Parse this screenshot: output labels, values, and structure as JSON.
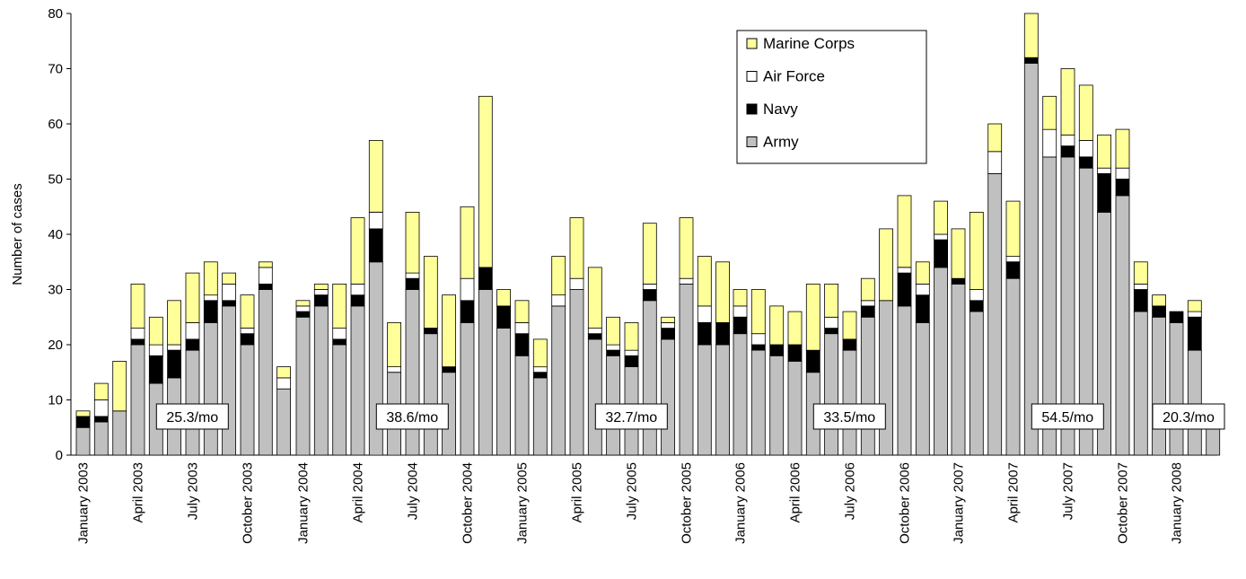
{
  "chart_data": {
    "type": "bar",
    "stacked": true,
    "ylabel": "Number of cases",
    "ylim": [
      0,
      80
    ],
    "yticks": [
      0,
      10,
      20,
      30,
      40,
      50,
      60,
      70,
      80
    ],
    "grid": false,
    "legend_position": "top-right",
    "series_order": [
      "Army",
      "Navy",
      "Air Force",
      "Marine Corps"
    ],
    "legend_order": [
      "Marine Corps",
      "Air Force",
      "Navy",
      "Army"
    ],
    "colors": {
      "Army": "#c0c0c0",
      "Navy": "#000000",
      "Air Force": "#ffffff",
      "Marine Corps": "#ffff99"
    },
    "years": [
      {
        "year": "2003",
        "rate_label": "25.3/mo",
        "tick_labels": [
          "January 2003",
          "April 2003",
          "July 2003",
          "October 2003"
        ],
        "months": [
          {
            "Army": 5,
            "Navy": 2,
            "Air Force": 0,
            "Marine Corps": 1
          },
          {
            "Army": 6,
            "Navy": 1,
            "Air Force": 3,
            "Marine Corps": 3
          },
          {
            "Army": 8,
            "Navy": 0,
            "Air Force": 0,
            "Marine Corps": 9
          },
          {
            "Army": 20,
            "Navy": 1,
            "Air Force": 2,
            "Marine Corps": 8
          },
          {
            "Army": 13,
            "Navy": 5,
            "Air Force": 2,
            "Marine Corps": 5
          },
          {
            "Army": 14,
            "Navy": 5,
            "Air Force": 1,
            "Marine Corps": 8
          },
          {
            "Army": 19,
            "Navy": 2,
            "Air Force": 3,
            "Marine Corps": 9
          },
          {
            "Army": 24,
            "Navy": 4,
            "Air Force": 1,
            "Marine Corps": 6
          },
          {
            "Army": 27,
            "Navy": 1,
            "Air Force": 3,
            "Marine Corps": 2
          },
          {
            "Army": 20,
            "Navy": 2,
            "Air Force": 1,
            "Marine Corps": 6
          },
          {
            "Army": 30,
            "Navy": 1,
            "Air Force": 3,
            "Marine Corps": 1
          },
          {
            "Army": 12,
            "Navy": 0,
            "Air Force": 2,
            "Marine Corps": 2
          }
        ]
      },
      {
        "year": "2004",
        "rate_label": "38.6/mo",
        "tick_labels": [
          "January 2004",
          "April 2004",
          "July 2004",
          "October 2004"
        ],
        "months": [
          {
            "Army": 25,
            "Navy": 1,
            "Air Force": 1,
            "Marine Corps": 1
          },
          {
            "Army": 27,
            "Navy": 2,
            "Air Force": 1,
            "Marine Corps": 1
          },
          {
            "Army": 20,
            "Navy": 1,
            "Air Force": 2,
            "Marine Corps": 8
          },
          {
            "Army": 27,
            "Navy": 2,
            "Air Force": 2,
            "Marine Corps": 12
          },
          {
            "Army": 35,
            "Navy": 6,
            "Air Force": 3,
            "Marine Corps": 13
          },
          {
            "Army": 15,
            "Navy": 0,
            "Air Force": 1,
            "Marine Corps": 8
          },
          {
            "Army": 30,
            "Navy": 2,
            "Air Force": 1,
            "Marine Corps": 11
          },
          {
            "Army": 22,
            "Navy": 1,
            "Air Force": 0,
            "Marine Corps": 13
          },
          {
            "Army": 15,
            "Navy": 1,
            "Air Force": 0,
            "Marine Corps": 13
          },
          {
            "Army": 24,
            "Navy": 4,
            "Air Force": 4,
            "Marine Corps": 13
          },
          {
            "Army": 30,
            "Navy": 4,
            "Air Force": 0,
            "Marine Corps": 31
          },
          {
            "Army": 23,
            "Navy": 4,
            "Air Force": 0,
            "Marine Corps": 3
          }
        ]
      },
      {
        "year": "2005",
        "rate_label": "32.7/mo",
        "tick_labels": [
          "January 2005",
          "April 2005",
          "July 2005",
          "October 2005"
        ],
        "months": [
          {
            "Army": 18,
            "Navy": 4,
            "Air Force": 2,
            "Marine Corps": 4
          },
          {
            "Army": 14,
            "Navy": 1,
            "Air Force": 1,
            "Marine Corps": 5
          },
          {
            "Army": 27,
            "Navy": 0,
            "Air Force": 2,
            "Marine Corps": 7
          },
          {
            "Army": 30,
            "Navy": 0,
            "Air Force": 2,
            "Marine Corps": 11
          },
          {
            "Army": 21,
            "Navy": 1,
            "Air Force": 1,
            "Marine Corps": 11
          },
          {
            "Army": 18,
            "Navy": 1,
            "Air Force": 1,
            "Marine Corps": 5
          },
          {
            "Army": 16,
            "Navy": 2,
            "Air Force": 1,
            "Marine Corps": 5
          },
          {
            "Army": 28,
            "Navy": 2,
            "Air Force": 1,
            "Marine Corps": 11
          },
          {
            "Army": 21,
            "Navy": 2,
            "Air Force": 1,
            "Marine Corps": 1
          },
          {
            "Army": 31,
            "Navy": 0,
            "Air Force": 1,
            "Marine Corps": 11
          },
          {
            "Army": 20,
            "Navy": 4,
            "Air Force": 3,
            "Marine Corps": 9
          },
          {
            "Army": 20,
            "Navy": 4,
            "Air Force": 0,
            "Marine Corps": 11
          }
        ]
      },
      {
        "year": "2006",
        "rate_label": "33.5/mo",
        "tick_labels": [
          "January 2006",
          "April 2006",
          "July 2006",
          "October 2006"
        ],
        "months": [
          {
            "Army": 22,
            "Navy": 3,
            "Air Force": 2,
            "Marine Corps": 3
          },
          {
            "Army": 19,
            "Navy": 1,
            "Air Force": 2,
            "Marine Corps": 8
          },
          {
            "Army": 18,
            "Navy": 2,
            "Air Force": 0,
            "Marine Corps": 7
          },
          {
            "Army": 17,
            "Navy": 3,
            "Air Force": 0,
            "Marine Corps": 6
          },
          {
            "Army": 15,
            "Navy": 4,
            "Air Force": 0,
            "Marine Corps": 12
          },
          {
            "Army": 22,
            "Navy": 1,
            "Air Force": 2,
            "Marine Corps": 6
          },
          {
            "Army": 19,
            "Navy": 2,
            "Air Force": 0,
            "Marine Corps": 5
          },
          {
            "Army": 25,
            "Navy": 2,
            "Air Force": 1,
            "Marine Corps": 4
          },
          {
            "Army": 28,
            "Navy": 0,
            "Air Force": 0,
            "Marine Corps": 13
          },
          {
            "Army": 27,
            "Navy": 6,
            "Air Force": 1,
            "Marine Corps": 13
          },
          {
            "Army": 24,
            "Navy": 5,
            "Air Force": 2,
            "Marine Corps": 4
          },
          {
            "Army": 34,
            "Navy": 5,
            "Air Force": 1,
            "Marine Corps": 6
          }
        ]
      },
      {
        "year": "2007",
        "rate_label": "54.5/mo",
        "tick_labels": [
          "January 2007",
          "April 2007",
          "July 2007",
          "October 2007"
        ],
        "months": [
          {
            "Army": 31,
            "Navy": 1,
            "Air Force": 0,
            "Marine Corps": 9
          },
          {
            "Army": 26,
            "Navy": 2,
            "Air Force": 2,
            "Marine Corps": 14
          },
          {
            "Army": 51,
            "Navy": 0,
            "Air Force": 4,
            "Marine Corps": 5
          },
          {
            "Army": 32,
            "Navy": 3,
            "Air Force": 1,
            "Marine Corps": 10
          },
          {
            "Army": 71,
            "Navy": 1,
            "Air Force": 0,
            "Marine Corps": 8
          },
          {
            "Army": 54,
            "Navy": 0,
            "Air Force": 5,
            "Marine Corps": 6
          },
          {
            "Army": 54,
            "Navy": 2,
            "Air Force": 2,
            "Marine Corps": 12
          },
          {
            "Army": 52,
            "Navy": 2,
            "Air Force": 3,
            "Marine Corps": 10
          },
          {
            "Army": 44,
            "Navy": 7,
            "Air Force": 1,
            "Marine Corps": 6
          },
          {
            "Army": 47,
            "Navy": 3,
            "Air Force": 2,
            "Marine Corps": 7
          },
          {
            "Army": 26,
            "Navy": 4,
            "Air Force": 1,
            "Marine Corps": 4
          },
          {
            "Army": 25,
            "Navy": 2,
            "Air Force": 0,
            "Marine Corps": 2
          }
        ]
      },
      {
        "year": "2008",
        "rate_label": "20.3/mo",
        "tick_labels": [
          "January 2008"
        ],
        "months": [
          {
            "Army": 24,
            "Navy": 2,
            "Air Force": 0,
            "Marine Corps": 0
          },
          {
            "Army": 19,
            "Navy": 6,
            "Air Force": 1,
            "Marine Corps": 2
          },
          {
            "Army": 7,
            "Navy": 0,
            "Air Force": 0,
            "Marine Corps": 0
          }
        ]
      }
    ]
  }
}
